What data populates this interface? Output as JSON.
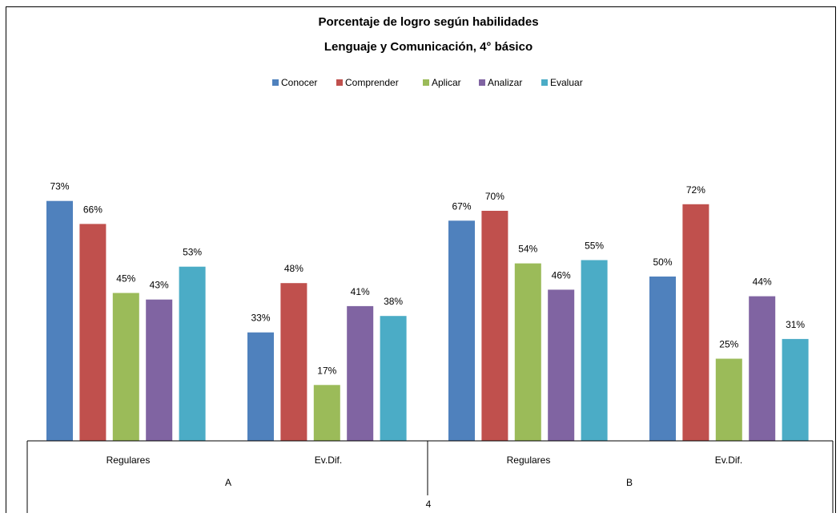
{
  "chart_data": {
    "type": "bar",
    "title": "Porcentaje de logro según habilidades",
    "subtitle": "Lenguaje y Comunicación, 4° básico",
    "xlabel": "",
    "ylabel": "",
    "ylim": [
      0,
      100
    ],
    "grid": false,
    "legend_position": "top",
    "value_suffix": "%",
    "categories": [
      "Regulares",
      "Ev.Dif.",
      "Regulares",
      "Ev.Dif."
    ],
    "category_groups": [
      {
        "label": "A",
        "members": [
          0,
          1
        ]
      },
      {
        "label": "B",
        "members": [
          2,
          3
        ]
      }
    ],
    "top_group_label": "4",
    "series": [
      {
        "name": "Conocer",
        "color": "#4F81BD",
        "values": [
          73,
          33,
          67,
          50
        ]
      },
      {
        "name": "Comprender",
        "color": "#C0504D",
        "values": [
          66,
          48,
          70,
          72
        ]
      },
      {
        "name": "Aplicar",
        "color": "#9BBB59",
        "values": [
          45,
          17,
          54,
          25
        ]
      },
      {
        "name": "Analizar",
        "color": "#8064A2",
        "values": [
          43,
          41,
          46,
          44
        ]
      },
      {
        "name": "Evaluar",
        "color": "#4BACC6",
        "values": [
          53,
          38,
          55,
          31
        ]
      }
    ]
  }
}
